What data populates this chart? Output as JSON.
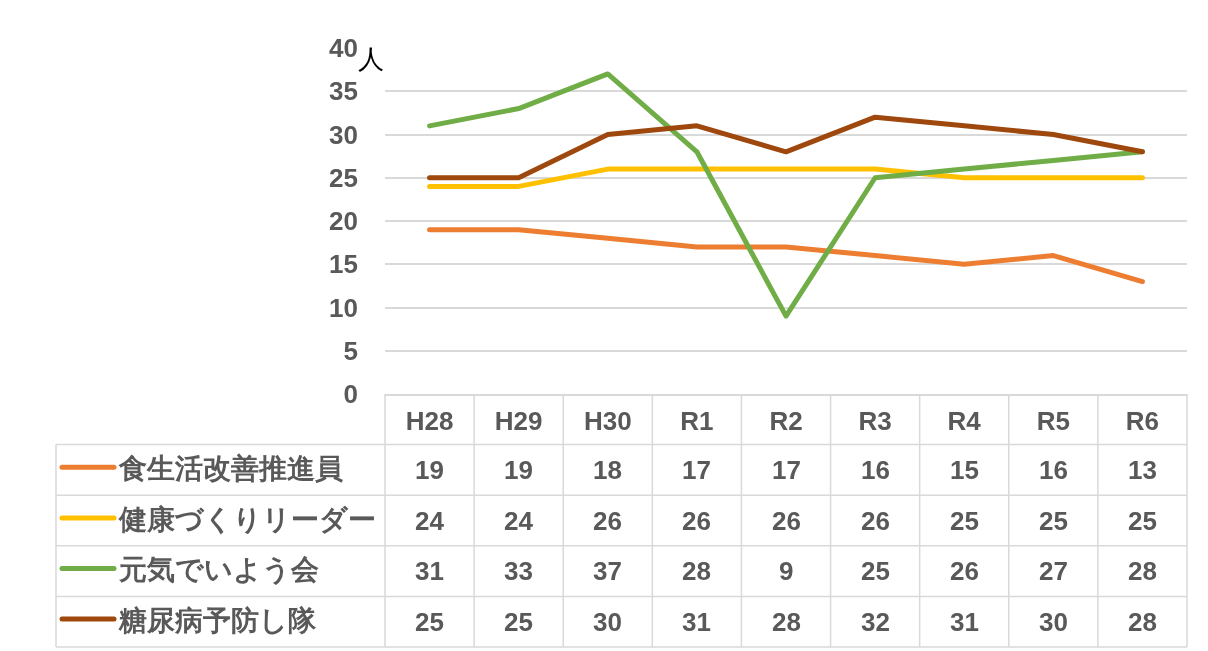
{
  "chart_data": {
    "type": "line",
    "ylabel": "人",
    "categories": [
      "H28",
      "H29",
      "H30",
      "R1",
      "R2",
      "R3",
      "R4",
      "R5",
      "R6"
    ],
    "series": [
      {
        "name": "食生活改善推進員",
        "color": "#ed7d31",
        "values": [
          19,
          19,
          18,
          17,
          17,
          16,
          15,
          16,
          13
        ]
      },
      {
        "name": "健康づくりリーダー",
        "color": "#ffc000",
        "values": [
          24,
          24,
          26,
          26,
          26,
          26,
          25,
          25,
          25
        ]
      },
      {
        "name": "元気でいよう会",
        "color": "#70ad47",
        "values": [
          31,
          33,
          37,
          28,
          9,
          25,
          26,
          27,
          28
        ]
      },
      {
        "name": "糖尿病予防し隊",
        "color": "#9e480e",
        "values": [
          25,
          25,
          30,
          31,
          28,
          32,
          31,
          30,
          28
        ]
      }
    ],
    "ylim": [
      0,
      40
    ],
    "yticks": [
      0,
      5,
      10,
      15,
      20,
      25,
      30,
      35,
      40
    ],
    "grid": "y",
    "legend": "bottom left",
    "data_labels": true
  }
}
